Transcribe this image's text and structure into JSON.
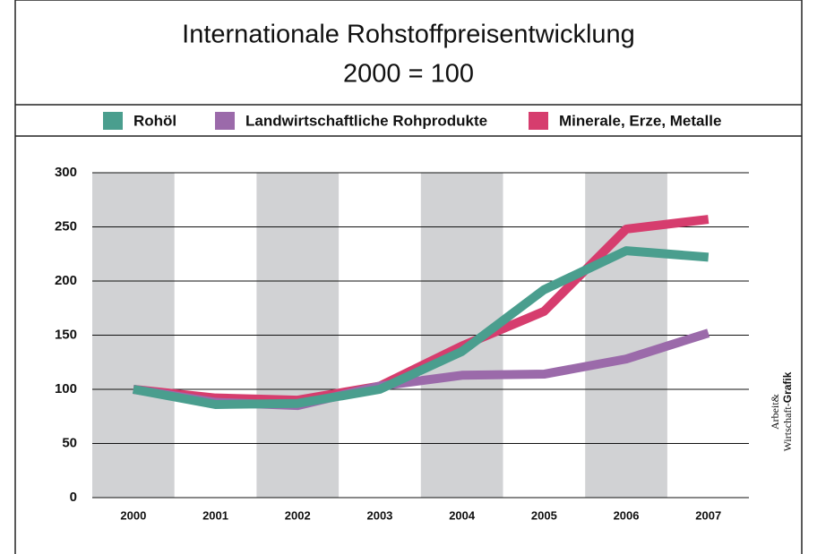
{
  "chart_data": {
    "type": "line",
    "title": "Internationale Rohstoffpreisentwicklung",
    "subtitle": "2000 = 100",
    "categories": [
      "2000",
      "2001",
      "2002",
      "2003",
      "2004",
      "2005",
      "2006",
      "2007"
    ],
    "series": [
      {
        "name": "Rohöl",
        "color": "#4a9e8e",
        "values": [
          100,
          86,
          87,
          100,
          135,
          192,
          228,
          222
        ]
      },
      {
        "name": "Landwirtschaftliche Rohprodukte",
        "color": "#9b6aaa",
        "values": [
          100,
          88,
          85,
          103,
          113,
          114,
          128,
          152
        ]
      },
      {
        "name": "Minerale, Erze, Metalle",
        "color": "#d63d6e",
        "values": [
          100,
          92,
          90,
          103,
          140,
          172,
          248,
          257
        ]
      }
    ],
    "ylim": [
      0,
      300
    ],
    "yticks": [
      0,
      50,
      100,
      150,
      200,
      250,
      300
    ],
    "grid": true,
    "credit": {
      "line1": "Arbeit&",
      "line2": "Wirtschaft-",
      "bold": "Grafik"
    }
  }
}
